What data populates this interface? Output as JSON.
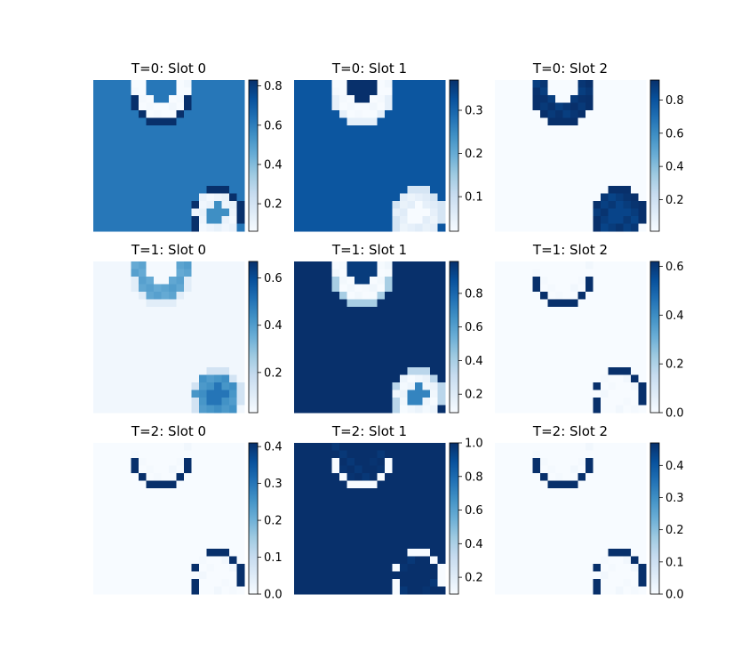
{
  "figure": {
    "colormap": "Blues",
    "colormap_stops": [
      "#f7fbff",
      "#deebf7",
      "#c6dbef",
      "#9ecae1",
      "#6baed6",
      "#4292c6",
      "#2171b5",
      "#08519c",
      "#08306b"
    ]
  },
  "chart_data": [
    {
      "type": "heatmap",
      "title": "T=0: Slot 0",
      "t": 0,
      "slot": 0,
      "clim": [
        0.06,
        0.83
      ],
      "cticks": [
        0.2,
        0.4,
        0.6,
        0.8
      ],
      "cticklabels": [
        "0.2",
        "0.4",
        "0.6",
        "0.8"
      ],
      "layers": {
        "background": 0.62,
        "ring_a": 0.06,
        "ring_a_edge": 0.83,
        "hole_a": 0.62,
        "ring_b": 0.1,
        "ring_b_edge": 0.83,
        "hole_b": 0.55
      }
    },
    {
      "type": "heatmap",
      "title": "T=0: Slot 1",
      "t": 0,
      "slot": 1,
      "clim": [
        0.02,
        0.37
      ],
      "cticks": [
        0.1,
        0.2,
        0.3
      ],
      "cticklabels": [
        "0.1",
        "0.2",
        "0.3"
      ],
      "layers": {
        "background": 0.32,
        "ring_a": 0.02,
        "ring_a_edge": 0.05,
        "hole_a": 0.37,
        "ring_b": 0.05,
        "ring_b_edge": 0.08,
        "hole_b": 0.02
      }
    },
    {
      "type": "heatmap",
      "title": "T=0: Slot 2",
      "t": 0,
      "slot": 2,
      "clim": [
        0.01,
        0.92
      ],
      "cticks": [
        0.2,
        0.4,
        0.6,
        0.8
      ],
      "cticklabels": [
        "0.2",
        "0.4",
        "0.6",
        "0.8"
      ],
      "layers": {
        "background": 0.01,
        "ring_a": 0.9,
        "ring_a_edge": 0.92,
        "hole_a": 0.01,
        "ring_b": 0.88,
        "ring_b_edge": 0.92,
        "hole_b": 0.85
      }
    },
    {
      "type": "heatmap",
      "title": "T=1: Slot 0",
      "t": 1,
      "slot": 0,
      "clim": [
        0.03,
        0.67
      ],
      "cticks": [
        0.2,
        0.4,
        0.6
      ],
      "cticklabels": [
        "0.2",
        "0.4",
        "0.6"
      ],
      "layers": {
        "background": 0.05,
        "ring_a": 0.38,
        "ring_a_edge": 0.1,
        "hole_a": 0.04,
        "ring_b": 0.42,
        "ring_b_edge": 0.15,
        "hole_b": 0.5
      }
    },
    {
      "type": "heatmap",
      "title": "T=1: Slot 1",
      "t": 1,
      "slot": 1,
      "clim": [
        0.09,
        0.99
      ],
      "cticks": [
        0.2,
        0.4,
        0.6,
        0.8
      ],
      "cticklabels": [
        "0.2",
        "0.4",
        "0.6",
        "0.8"
      ],
      "layers": {
        "background": 0.99,
        "ring_a": 0.1,
        "ring_a_edge": 0.4,
        "hole_a": 0.95,
        "ring_b": 0.12,
        "ring_b_edge": 0.35,
        "hole_b": 0.7
      }
    },
    {
      "type": "heatmap",
      "title": "T=1: Slot 2",
      "t": 1,
      "slot": 2,
      "clim": [
        0.0,
        0.62
      ],
      "cticks": [
        0.0,
        0.2,
        0.4,
        0.6
      ],
      "cticklabels": [
        "0.0",
        "0.2",
        "0.4",
        "0.6"
      ],
      "layers": {
        "background": 0.0,
        "ring_a": 0.0,
        "ring_a_edge": 0.62,
        "hole_a": 0.0,
        "ring_b": 0.0,
        "ring_b_edge": 0.62,
        "hole_b": 0.0
      }
    },
    {
      "type": "heatmap",
      "title": "T=2: Slot 0",
      "t": 2,
      "slot": 0,
      "clim": [
        0.0,
        0.41
      ],
      "cticks": [
        0.0,
        0.1,
        0.2,
        0.3,
        0.4
      ],
      "cticklabels": [
        "0.0",
        "0.1",
        "0.2",
        "0.3",
        "0.4"
      ],
      "layers": {
        "background": 0.0,
        "ring_a": 0.0,
        "ring_a_edge": 0.41,
        "hole_a": 0.0,
        "ring_b": 0.0,
        "ring_b_edge": 0.41,
        "hole_b": 0.0
      }
    },
    {
      "type": "heatmap",
      "title": "T=2: Slot 1",
      "t": 2,
      "slot": 1,
      "clim": [
        0.1,
        1.0
      ],
      "cticks": [
        0.2,
        0.4,
        0.6,
        0.8,
        1.0
      ],
      "cticklabels": [
        "0.2",
        "0.4",
        "0.6",
        "0.8",
        "1.0"
      ],
      "layers": {
        "background": 1.0,
        "ring_a": 1.0,
        "ring_a_edge": 0.1,
        "hole_a": 1.0,
        "ring_b": 1.0,
        "ring_b_edge": 0.1,
        "hole_b": 1.0
      }
    },
    {
      "type": "heatmap",
      "title": "T=2: Slot 2",
      "t": 2,
      "slot": 2,
      "clim": [
        0.0,
        0.47
      ],
      "cticks": [
        0.0,
        0.1,
        0.2,
        0.3,
        0.4
      ],
      "cticklabels": [
        "0.0",
        "0.1",
        "0.2",
        "0.3",
        "0.4"
      ],
      "layers": {
        "background": 0.0,
        "ring_a": 0.0,
        "ring_a_edge": 0.47,
        "hole_a": 0.0,
        "ring_b": 0.0,
        "ring_b_edge": 0.47,
        "hole_b": 0.0
      }
    }
  ]
}
